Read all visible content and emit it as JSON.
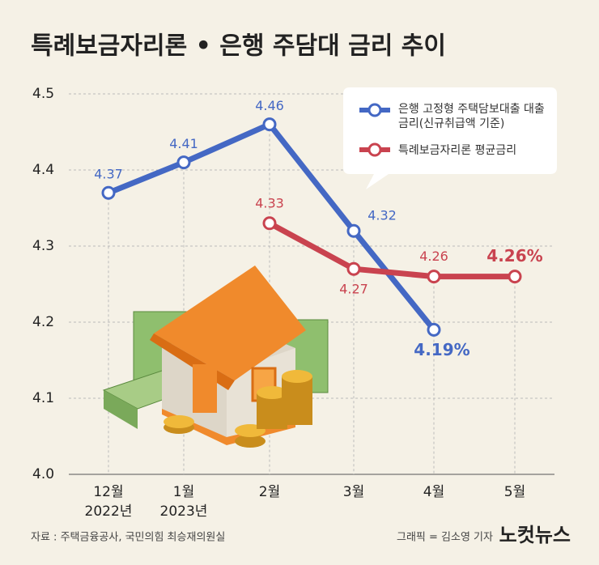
{
  "chart_data": {
    "type": "line",
    "title": "특례보금자리론 • 은행 주담대 금리 추이",
    "categories": [
      "12월",
      "1월",
      "2월",
      "3월",
      "4월",
      "5월"
    ],
    "category_sublabels": [
      "2022년",
      "2023년",
      null,
      null,
      null,
      null
    ],
    "series": [
      {
        "name": "은행 고정형 주택담보대출 대출금리(신규취급액 기준)",
        "color": "#4468c4",
        "values": [
          4.37,
          4.41,
          4.46,
          4.32,
          4.19,
          null
        ],
        "value_labels": [
          "4.37",
          "4.41",
          "4.46",
          "4.32",
          "4.19%",
          null
        ]
      },
      {
        "name": "특례보금자리론 평균금리",
        "color": "#c9434f",
        "values": [
          null,
          null,
          4.33,
          4.27,
          4.26,
          4.26
        ],
        "value_labels": [
          null,
          null,
          "4.33",
          "4.27",
          "4.26",
          "4.26%"
        ]
      }
    ],
    "ylim": [
      4.0,
      4.5
    ],
    "yticks": [
      {
        "value": 4.0,
        "label": "4.0"
      },
      4.1,
      4.2,
      4.3,
      4.4,
      4.5
    ],
    "grid": true,
    "source": "자료 : 주택금융공사, 국민의힘 최승재의원실",
    "credit": "그래픽 = 김소영 기자",
    "logo": "노컷뉴스"
  }
}
